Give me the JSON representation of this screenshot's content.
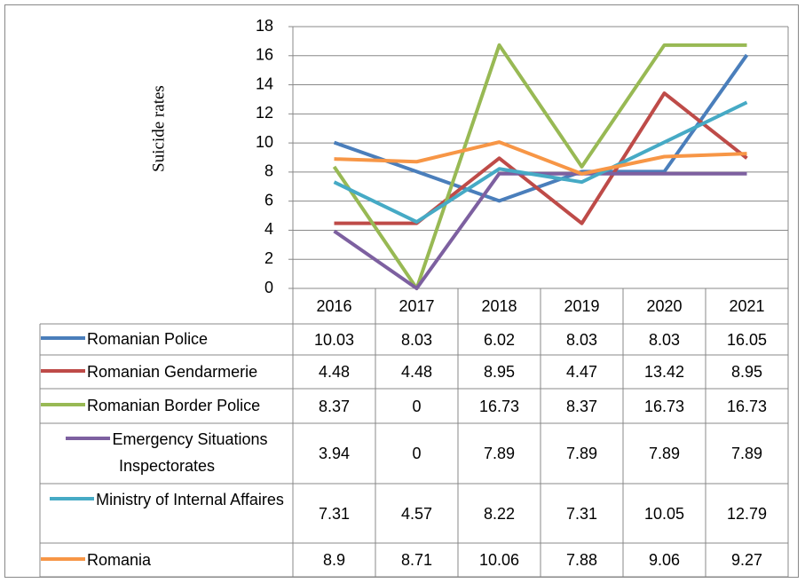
{
  "chart_data": {
    "type": "line",
    "y_label": "Suicide rates",
    "categories": [
      "2016",
      "2017",
      "2018",
      "2019",
      "2020",
      "2021"
    ],
    "ylim": [
      0,
      18
    ],
    "yticks": [
      0,
      2,
      4,
      6,
      8,
      10,
      12,
      14,
      16,
      18
    ],
    "grid": true,
    "series": [
      {
        "name": "Romanian Police",
        "color": "#4a7ebb",
        "values": [
          10.03,
          8.03,
          6.02,
          8.03,
          8.03,
          16.05
        ]
      },
      {
        "name": "Romanian Gendarmerie",
        "color": "#be4b48",
        "values": [
          4.48,
          4.48,
          8.95,
          4.47,
          13.42,
          8.95
        ]
      },
      {
        "name": "Romanian Border Police",
        "color": "#98b954",
        "values": [
          8.37,
          0,
          16.73,
          8.37,
          16.73,
          16.73
        ]
      },
      {
        "name": "Emergency Situations Inspectorates",
        "color": "#7d60a0",
        "values": [
          3.94,
          0,
          7.89,
          7.89,
          7.89,
          7.89
        ]
      },
      {
        "name": "Ministry of Internal Affaires",
        "color": "#46aac5",
        "values": [
          7.31,
          4.57,
          8.22,
          7.31,
          10.05,
          12.79
        ]
      },
      {
        "name": "Romania",
        "color": "#f79646",
        "values": [
          8.9,
          8.71,
          10.06,
          7.88,
          9.06,
          9.27
        ]
      }
    ]
  }
}
